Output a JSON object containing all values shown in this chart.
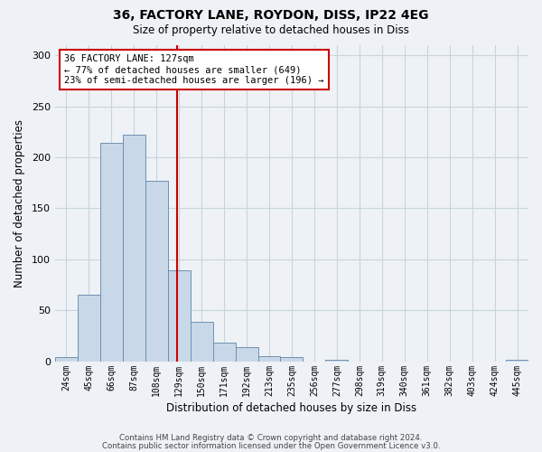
{
  "title": "36, FACTORY LANE, ROYDON, DISS, IP22 4EG",
  "subtitle": "Size of property relative to detached houses in Diss",
  "xlabel": "Distribution of detached houses by size in Diss",
  "ylabel": "Number of detached properties",
  "footer_line1": "Contains HM Land Registry data © Crown copyright and database right 2024.",
  "footer_line2": "Contains public sector information licensed under the Open Government Licence v3.0.",
  "bin_labels": [
    "24sqm",
    "45sqm",
    "66sqm",
    "87sqm",
    "108sqm",
    "129sqm",
    "150sqm",
    "171sqm",
    "192sqm",
    "213sqm",
    "235sqm",
    "256sqm",
    "277sqm",
    "298sqm",
    "319sqm",
    "340sqm",
    "361sqm",
    "382sqm",
    "403sqm",
    "424sqm",
    "445sqm"
  ],
  "bar_values": [
    4,
    65,
    214,
    222,
    177,
    89,
    39,
    18,
    14,
    5,
    4,
    0,
    1,
    0,
    0,
    0,
    0,
    0,
    0,
    0,
    1
  ],
  "bar_color": "#c8d8e8",
  "bar_edge_color": "#7090b0",
  "vline_x_index": 4.9,
  "vline_color": "#cc0000",
  "annotation_line1": "36 FACTORY LANE: 127sqm",
  "annotation_line2": "← 77% of detached houses are smaller (649)",
  "annotation_line3": "23% of semi-detached houses are larger (196) →",
  "annotation_box_edgecolor": "#cc0000",
  "ylim": [
    0,
    310
  ],
  "yticks": [
    0,
    50,
    100,
    150,
    200,
    250,
    300
  ],
  "grid_color": "#c8d4de",
  "background_color": "#eef2f6",
  "plot_bg_color": "#eef2f6"
}
